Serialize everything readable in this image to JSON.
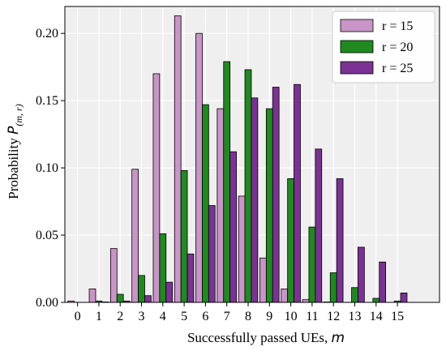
{
  "chart_data": {
    "type": "bar",
    "xlabel_text": "Successfully passed UEs, ",
    "xlabel_var": "m",
    "ylabel_text": "Probability ",
    "ylabel_var": "P",
    "ylabel_sub": "(m, r)",
    "categories": [
      "0",
      "1",
      "2",
      "3",
      "4",
      "5",
      "6",
      "7",
      "8",
      "9",
      "10",
      "11",
      "12",
      "13",
      "14",
      "15"
    ],
    "ylim": [
      0,
      0.22
    ],
    "yticks": [
      0.0,
      0.05,
      0.1,
      0.15,
      0.2
    ],
    "ytick_labels": [
      "0.00",
      "0.05",
      "0.10",
      "0.15",
      "0.20"
    ],
    "grid": true,
    "legend_position": "top-right",
    "series": [
      {
        "name": "r = 15",
        "color": "#c994c7",
        "values": [
          0.001,
          0.01,
          0.04,
          0.099,
          0.17,
          0.213,
          0.2,
          0.144,
          0.079,
          0.033,
          0.01,
          0.002,
          0.0003,
          0.0001,
          0.0,
          0.0
        ]
      },
      {
        "name": "r = 20",
        "color": "#1f8a1f",
        "values": [
          0.0,
          0.001,
          0.006,
          0.02,
          0.051,
          0.098,
          0.147,
          0.179,
          0.173,
          0.144,
          0.092,
          0.056,
          0.022,
          0.011,
          0.003,
          0.001
        ]
      },
      {
        "name": "r = 25",
        "color": "#7b3294",
        "values": [
          0.0,
          0.0003,
          0.001,
          0.005,
          0.015,
          0.036,
          0.072,
          0.112,
          0.152,
          0.16,
          0.162,
          0.114,
          0.092,
          0.041,
          0.03,
          0.007
        ]
      }
    ]
  }
}
